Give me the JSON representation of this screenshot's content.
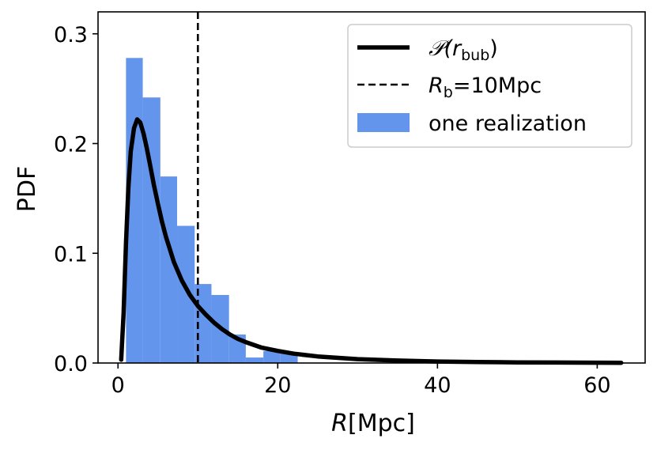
{
  "chart_data": {
    "type": "bar",
    "xlabel": "R[Mpc]",
    "xlabel_italic": "R",
    "xlabel_unit": "[Mpc]",
    "ylabel": "PDF",
    "xlim": [
      -2.5,
      66
    ],
    "ylim": [
      0,
      0.32
    ],
    "xticks": [
      0,
      20,
      40,
      60
    ],
    "yticks": [
      0.0,
      0.1,
      0.2,
      0.3
    ],
    "xtick_labels": [
      "0",
      "20",
      "40",
      "60"
    ],
    "ytick_labels": [
      "0.0",
      "0.1",
      "0.2",
      "0.3"
    ],
    "grid": false,
    "legend_position": "upper-right",
    "histogram": {
      "name": "one realization",
      "color": "#6495ed",
      "bin_edges": [
        1.0,
        3.1,
        5.3,
        7.4,
        9.6,
        11.7,
        13.9,
        16.0,
        18.2,
        20.3,
        22.5
      ],
      "values": [
        0.278,
        0.242,
        0.17,
        0.125,
        0.072,
        0.062,
        0.026,
        0.005,
        0.011,
        0.009
      ]
    },
    "curve": {
      "name": "𝒫(r_bub)",
      "legend_main": "𝒫(",
      "legend_var": "r",
      "legend_sub": "bub",
      "legend_close": ")",
      "color": "#000000",
      "x": [
        0.4,
        0.7,
        1.0,
        1.3,
        1.6,
        2.0,
        2.4,
        2.8,
        3.2,
        3.6,
        4.0,
        4.5,
        5.0,
        5.5,
        6.0,
        7.0,
        8.0,
        9.0,
        10.0,
        11.0,
        12.0,
        13.0,
        14.0,
        15.0,
        16.0,
        18.0,
        20.0,
        22.0,
        25.0,
        30.0,
        35.0,
        40.0,
        45.0,
        50.0,
        55.0,
        60.0,
        63.0
      ],
      "y": [
        0.003,
        0.045,
        0.11,
        0.16,
        0.193,
        0.214,
        0.222,
        0.219,
        0.209,
        0.196,
        0.181,
        0.162,
        0.145,
        0.129,
        0.115,
        0.092,
        0.075,
        0.062,
        0.052,
        0.044,
        0.037,
        0.031,
        0.026,
        0.022,
        0.019,
        0.014,
        0.011,
        0.0085,
        0.006,
        0.0035,
        0.0022,
        0.0014,
        0.0009,
        0.0006,
        0.0004,
        0.0003,
        0.0002
      ]
    },
    "reference_line": {
      "name": "R_b=10Mpc",
      "legend_var": "R",
      "legend_sub": "b",
      "legend_rest": "=10Mpc",
      "x": 10,
      "color": "#000000",
      "style": "dashed"
    }
  }
}
